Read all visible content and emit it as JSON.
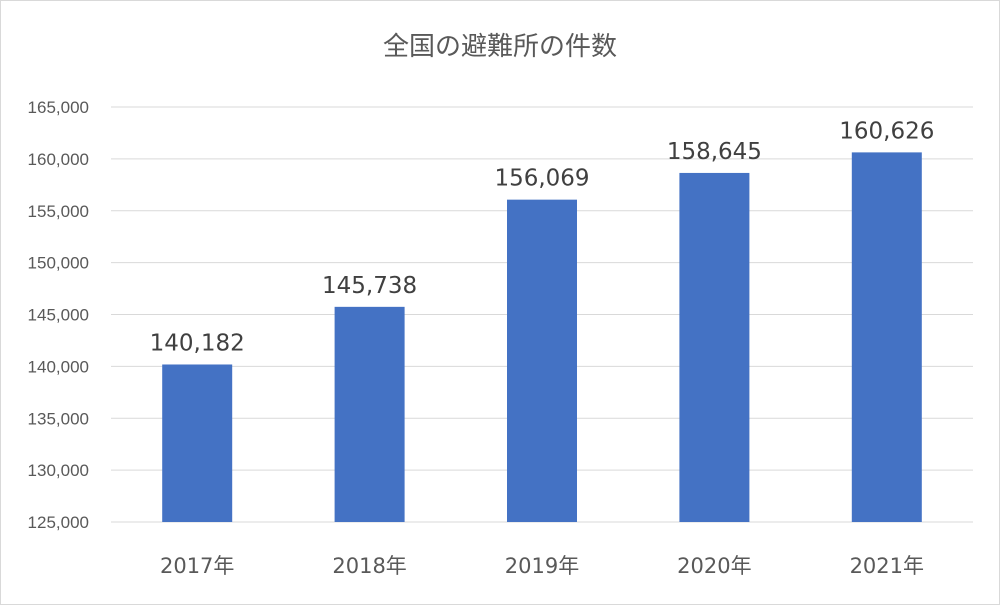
{
  "chart_data": {
    "type": "bar",
    "title": "全国の避難所の件数",
    "categories": [
      "2017年",
      "2018年",
      "2019年",
      "2020年",
      "2021年"
    ],
    "values": [
      140182,
      145738,
      156069,
      158645,
      160626
    ],
    "data_labels": [
      "140,182",
      "145,738",
      "156,069",
      "158,645",
      "160,626"
    ],
    "yticks": [
      "125,000",
      "130,000",
      "135,000",
      "140,000",
      "145,000",
      "150,000",
      "155,000",
      "160,000",
      "165,000"
    ],
    "ylim": [
      125000,
      165000
    ],
    "ytick_step": 5000,
    "grid": true,
    "legend": "none",
    "bar_color": "#4472c4",
    "grid_color": "#d9d9d9"
  }
}
